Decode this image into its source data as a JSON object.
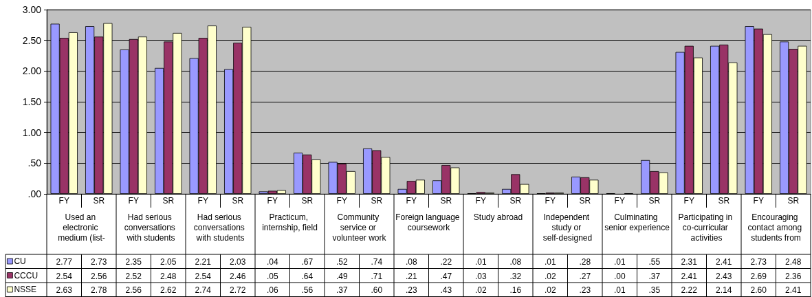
{
  "chart_data": {
    "type": "bar",
    "categories": [
      "FY",
      "SR",
      "FY",
      "SR",
      "FY",
      "SR",
      "FY",
      "SR",
      "FY",
      "SR",
      "FY",
      "SR",
      "FY",
      "SR",
      "FY",
      "SR",
      "FY",
      "SR",
      "FY",
      "SR",
      "FY",
      "SR"
    ],
    "annotations": [
      "Used an electronic medium (list-",
      "Had serious conversations with students",
      "Had serious conversations with students",
      "Practicum, internship, field",
      "Community service or volunteer work",
      "Foreign language coursework",
      "Study abroad",
      "Independent study or self-designed",
      "Culminating senior experience",
      "Participating in co-curricular activities",
      "Encouraging contact among students from"
    ],
    "series": [
      {
        "name": "CU",
        "color": "#9999ff",
        "values": [
          2.77,
          2.73,
          2.35,
          2.05,
          2.21,
          2.03,
          0.04,
          0.67,
          0.52,
          0.74,
          0.08,
          0.22,
          0.01,
          0.08,
          0.01,
          0.28,
          0.01,
          0.55,
          2.31,
          2.41,
          2.73,
          2.48
        ],
        "value_labels": [
          "2.77",
          "2.73",
          "2.35",
          "2.05",
          "2.21",
          "2.03",
          ".04",
          ".67",
          ".52",
          ".74",
          ".08",
          ".22",
          ".01",
          ".08",
          ".01",
          ".28",
          ".01",
          ".55",
          "2.31",
          "2.41",
          "2.73",
          "2.48"
        ]
      },
      {
        "name": "CCCU",
        "color": "#993366",
        "values": [
          2.54,
          2.56,
          2.52,
          2.48,
          2.54,
          2.46,
          0.05,
          0.64,
          0.49,
          0.71,
          0.21,
          0.47,
          0.03,
          0.32,
          0.02,
          0.27,
          0.0,
          0.37,
          2.41,
          2.43,
          2.69,
          2.36
        ],
        "value_labels": [
          "2.54",
          "2.56",
          "2.52",
          "2.48",
          "2.54",
          "2.46",
          ".05",
          ".64",
          ".49",
          ".71",
          ".21",
          ".47",
          ".03",
          ".32",
          ".02",
          ".27",
          ".00",
          ".37",
          "2.41",
          "2.43",
          "2.69",
          "2.36"
        ]
      },
      {
        "name": "NSSE",
        "color": "#ffffcc",
        "values": [
          2.63,
          2.78,
          2.56,
          2.62,
          2.74,
          2.72,
          0.06,
          0.56,
          0.37,
          0.6,
          0.23,
          0.43,
          0.02,
          0.16,
          0.02,
          0.23,
          0.01,
          0.35,
          2.22,
          2.14,
          2.6,
          2.41
        ],
        "value_labels": [
          "2.63",
          "2.78",
          "2.56",
          "2.62",
          "2.74",
          "2.72",
          ".06",
          ".56",
          ".37",
          ".60",
          ".23",
          ".43",
          ".02",
          ".16",
          ".02",
          ".23",
          ".01",
          ".35",
          "2.22",
          "2.14",
          "2.60",
          "2.41"
        ]
      }
    ],
    "ylim": [
      0,
      3
    ],
    "yticks": [
      {
        "value": 0,
        "label": ".00"
      },
      {
        "value": 0.5,
        "label": ".50"
      },
      {
        "value": 1,
        "label": "1.00"
      },
      {
        "value": 1.5,
        "label": "1.50"
      },
      {
        "value": 2,
        "label": "2.00"
      },
      {
        "value": 2.5,
        "label": "2.50"
      },
      {
        "value": 3,
        "label": "3.00"
      }
    ],
    "grid": "y",
    "legend": "bottom left"
  }
}
